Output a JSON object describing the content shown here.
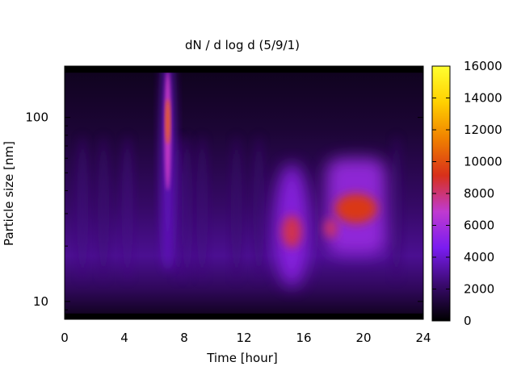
{
  "chart_data": {
    "type": "heatmap",
    "title": "dN / d log d (5/9/1)",
    "xlabel": "Time [hour]",
    "ylabel": "Particle size [nm]",
    "xlim": [
      0,
      24
    ],
    "ylim": [
      8,
      190
    ],
    "yscale": "log",
    "x_ticks": [
      0,
      4,
      8,
      12,
      16,
      20,
      24
    ],
    "y_ticks": [
      10,
      100
    ],
    "colorbar": {
      "range": [
        0,
        16000
      ],
      "ticks": [
        0,
        2000,
        4000,
        6000,
        8000,
        10000,
        12000,
        14000,
        16000
      ],
      "colormap": [
        "#000000",
        "#3a0a6e",
        "#7a1cf0",
        "#c03ad0",
        "#d8301a",
        "#f08000",
        "#ffd000",
        "#ffff30"
      ]
    },
    "features": [
      {
        "name": "narrow plume",
        "time_hour": 6.9,
        "size_nm_range": [
          40,
          180
        ],
        "peak_size_nm": 95,
        "peak_value": 10500
      },
      {
        "name": "afternoon cluster",
        "time_hour": 15.2,
        "size_nm_range": [
          15,
          45
        ],
        "peak_size_nm": 24,
        "peak_value": 10000
      },
      {
        "name": "evening cluster",
        "time_range_hour": [
          17.5,
          21.5
        ],
        "size_nm_range": [
          18,
          60
        ],
        "peak_size_nm": 32,
        "peak_value": 11000
      }
    ],
    "grid": false,
    "legend": "none"
  }
}
